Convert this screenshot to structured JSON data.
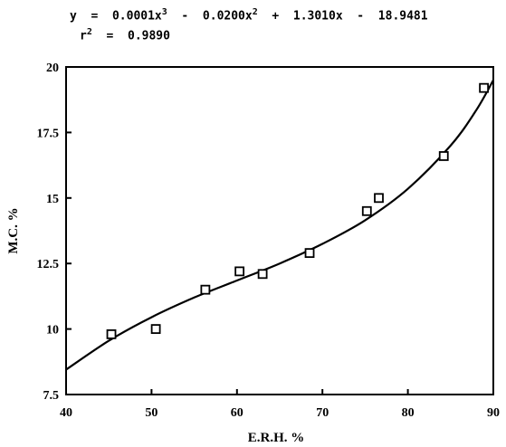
{
  "equation": {
    "y_prefix": "y  =  0.0001x",
    "y_exp3": "3",
    "y_mid": "  -  0.0200x",
    "y_exp2": "2",
    "y_suffix": "  +  1.3010x  -  18.9481",
    "r_prefix": "r",
    "r_exp": "2",
    "r_suffix": "  =  0.9890"
  },
  "chart_data": {
    "type": "scatter",
    "xlabel": "E.R.H.  %",
    "ylabel": "M.C.  %",
    "xlim": [
      40,
      90
    ],
    "ylim": [
      7.5,
      20
    ],
    "x_ticks": [
      "40",
      "50",
      "60",
      "70",
      "80",
      "90"
    ],
    "y_ticks": [
      "7.5",
      "10",
      "12.5",
      "15",
      "17.5",
      "20"
    ],
    "grid": false,
    "marker": "open-square",
    "points": [
      {
        "x": 45.3,
        "y": 9.8
      },
      {
        "x": 50.5,
        "y": 10.0
      },
      {
        "x": 56.3,
        "y": 11.5
      },
      {
        "x": 60.3,
        "y": 12.2
      },
      {
        "x": 63.0,
        "y": 12.1
      },
      {
        "x": 68.5,
        "y": 12.9
      },
      {
        "x": 75.2,
        "y": 14.5
      },
      {
        "x": 76.6,
        "y": 15.0
      },
      {
        "x": 84.2,
        "y": 16.6
      },
      {
        "x": 88.9,
        "y": 19.2
      }
    ],
    "fit_curve": [
      {
        "x": 40,
        "y": 8.45
      },
      {
        "x": 45,
        "y": 9.55
      },
      {
        "x": 50,
        "y": 10.45
      },
      {
        "x": 55,
        "y": 11.2
      },
      {
        "x": 60,
        "y": 11.85
      },
      {
        "x": 65,
        "y": 12.5
      },
      {
        "x": 70,
        "y": 13.25
      },
      {
        "x": 75,
        "y": 14.15
      },
      {
        "x": 80,
        "y": 15.35
      },
      {
        "x": 85,
        "y": 17.0
      },
      {
        "x": 88,
        "y": 18.35
      },
      {
        "x": 90,
        "y": 19.5
      }
    ]
  }
}
